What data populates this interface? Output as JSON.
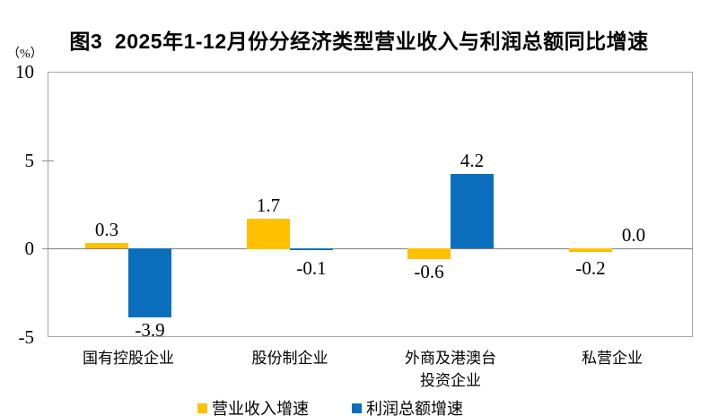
{
  "chart_data": {
    "type": "bar",
    "title": "图3  2025年1-12月份分经济类型营业收入与利润总额同比增速",
    "unit_label": "（%）",
    "categories": [
      "国有控股企业",
      "股份制企业",
      "外商及港澳台投资企业",
      "私营企业"
    ],
    "category_label_lines": [
      [
        "国有控股企业"
      ],
      [
        "股份制企业"
      ],
      [
        "外商及港澳台",
        "投资企业"
      ],
      [
        "私营企业"
      ]
    ],
    "series": [
      {
        "name": "营业收入增速",
        "color": "#FFC000",
        "values": [
          0.3,
          1.7,
          -0.6,
          -0.2
        ]
      },
      {
        "name": "利润总额增速",
        "color": "#0B6FBE",
        "values": [
          -3.9,
          -0.1,
          4.2,
          0.0
        ]
      }
    ],
    "ylim": [
      -5,
      10
    ],
    "yticks": [
      10,
      5,
      0,
      -5
    ],
    "xlabel": "",
    "ylabel": "",
    "grid": false,
    "legend_position": "bottom",
    "value_label_decimals": 1,
    "colors": {
      "plot_border": "#A6A6A6",
      "zero_line": "#808080",
      "text": "#000000"
    }
  }
}
